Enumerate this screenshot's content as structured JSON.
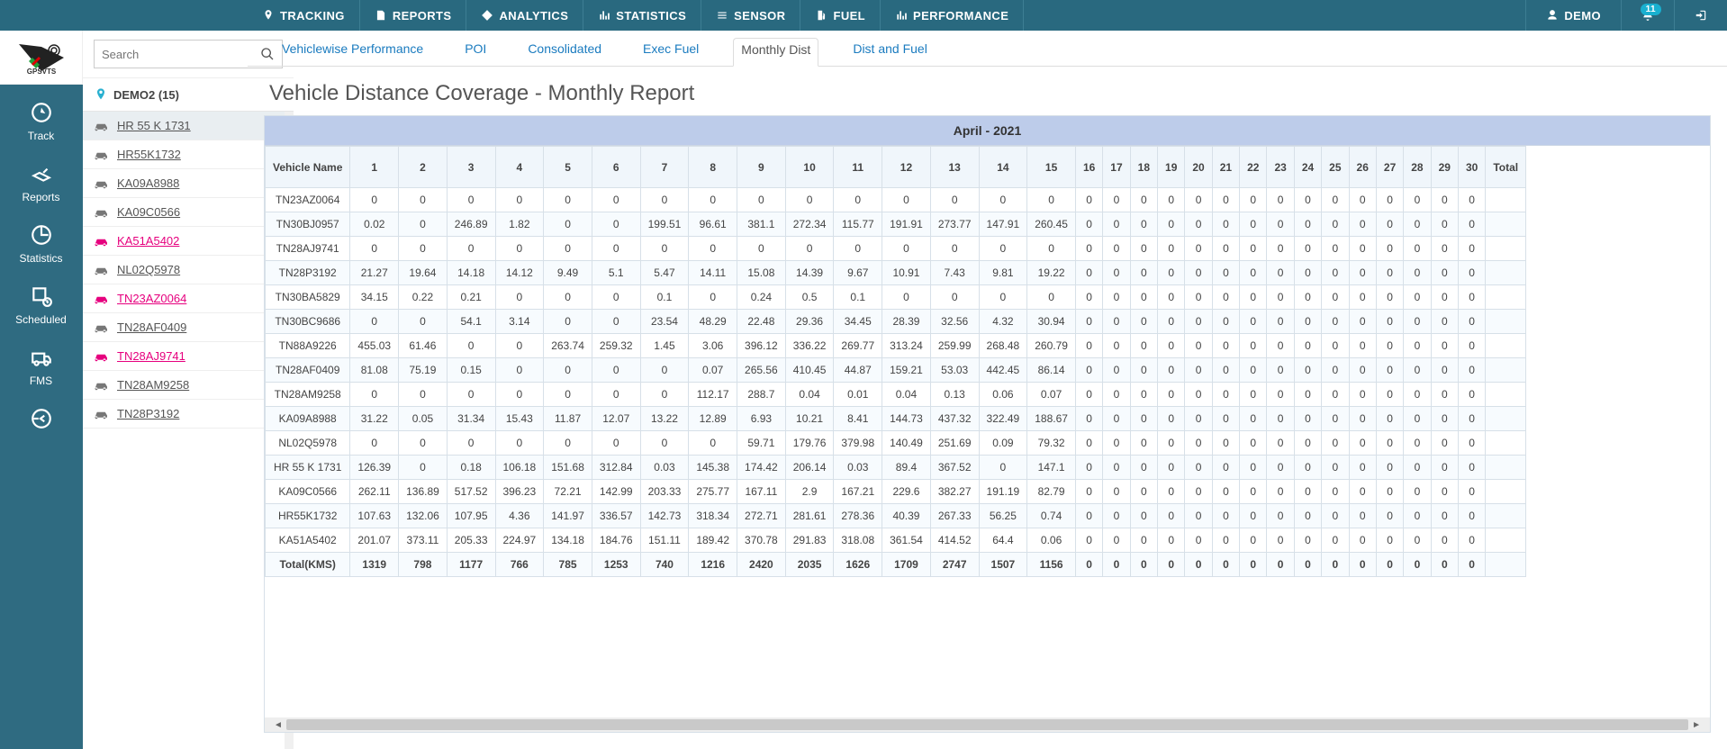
{
  "topnav": {
    "items": [
      {
        "icon": "pin",
        "label": "TRACKING"
      },
      {
        "icon": "doc",
        "label": "REPORTS"
      },
      {
        "icon": "diamond",
        "label": "ANALYTICS"
      },
      {
        "icon": "bars",
        "label": "STATISTICS"
      },
      {
        "icon": "sensor",
        "label": "SENSOR"
      },
      {
        "icon": "fuel",
        "label": "FUEL"
      },
      {
        "icon": "bars",
        "label": "PERFORMANCE"
      }
    ],
    "user_label": "DEMO",
    "notif_count": "11"
  },
  "search_placeholder": "Search",
  "group_label": "DEMO2 (15)",
  "rail": [
    {
      "label": "Track"
    },
    {
      "label": "Reports"
    },
    {
      "label": "Statistics"
    },
    {
      "label": "Scheduled"
    },
    {
      "label": "FMS"
    },
    {
      "label": ""
    }
  ],
  "vehicles": [
    {
      "name": "HR 55 K 1731",
      "pink": false,
      "sel": true
    },
    {
      "name": "HR55K1732",
      "pink": false,
      "sel": false
    },
    {
      "name": "KA09A8988",
      "pink": false,
      "sel": false
    },
    {
      "name": "KA09C0566",
      "pink": false,
      "sel": false
    },
    {
      "name": "KA51A5402",
      "pink": true,
      "sel": false
    },
    {
      "name": "NL02Q5978",
      "pink": false,
      "sel": false
    },
    {
      "name": "TN23AZ0064",
      "pink": true,
      "sel": false
    },
    {
      "name": "TN28AF0409",
      "pink": false,
      "sel": false
    },
    {
      "name": "TN28AJ9741",
      "pink": true,
      "sel": false
    },
    {
      "name": "TN28AM9258",
      "pink": false,
      "sel": false
    },
    {
      "name": "TN28P3192",
      "pink": false,
      "sel": false
    }
  ],
  "subtabs": [
    {
      "label": "Vehiclewise Performance",
      "active": false
    },
    {
      "label": "POI",
      "active": false
    },
    {
      "label": "Consolidated",
      "active": false
    },
    {
      "label": "Exec Fuel",
      "active": false
    },
    {
      "label": "Monthly Dist",
      "active": true
    },
    {
      "label": "Dist and Fuel",
      "active": false
    }
  ],
  "page_title": "Vehicle Distance Coverage - Monthly Report",
  "table": {
    "month_label": "April - 2021",
    "first_col": "Vehicle Name",
    "last_col": "Total",
    "days": [
      "1",
      "2",
      "3",
      "4",
      "5",
      "6",
      "7",
      "8",
      "9",
      "10",
      "11",
      "12",
      "13",
      "14",
      "15",
      "16",
      "17",
      "18",
      "19",
      "20",
      "21",
      "22",
      "23",
      "24",
      "25",
      "26",
      "27",
      "28",
      "29",
      "30"
    ],
    "rows": [
      {
        "name": "TN23AZ0064",
        "v": [
          "0",
          "0",
          "0",
          "0",
          "0",
          "0",
          "0",
          "0",
          "0",
          "0",
          "0",
          "0",
          "0",
          "0",
          "0",
          "0",
          "0",
          "0",
          "0",
          "0",
          "0",
          "0",
          "0",
          "0",
          "0",
          "0",
          "0",
          "0",
          "0",
          "0"
        ]
      },
      {
        "name": "TN30BJ0957",
        "v": [
          "0.02",
          "0",
          "246.89",
          "1.82",
          "0",
          "0",
          "199.51",
          "96.61",
          "381.1",
          "272.34",
          "115.77",
          "191.91",
          "273.77",
          "147.91",
          "260.45",
          "0",
          "0",
          "0",
          "0",
          "0",
          "0",
          "0",
          "0",
          "0",
          "0",
          "0",
          "0",
          "0",
          "0",
          "0"
        ]
      },
      {
        "name": "TN28AJ9741",
        "v": [
          "0",
          "0",
          "0",
          "0",
          "0",
          "0",
          "0",
          "0",
          "0",
          "0",
          "0",
          "0",
          "0",
          "0",
          "0",
          "0",
          "0",
          "0",
          "0",
          "0",
          "0",
          "0",
          "0",
          "0",
          "0",
          "0",
          "0",
          "0",
          "0",
          "0"
        ]
      },
      {
        "name": "TN28P3192",
        "v": [
          "21.27",
          "19.64",
          "14.18",
          "14.12",
          "9.49",
          "5.1",
          "5.47",
          "14.11",
          "15.08",
          "14.39",
          "9.67",
          "10.91",
          "7.43",
          "9.81",
          "19.22",
          "0",
          "0",
          "0",
          "0",
          "0",
          "0",
          "0",
          "0",
          "0",
          "0",
          "0",
          "0",
          "0",
          "0",
          "0"
        ]
      },
      {
        "name": "TN30BA5829",
        "v": [
          "34.15",
          "0.22",
          "0.21",
          "0",
          "0",
          "0",
          "0.1",
          "0",
          "0.24",
          "0.5",
          "0.1",
          "0",
          "0",
          "0",
          "0",
          "0",
          "0",
          "0",
          "0",
          "0",
          "0",
          "0",
          "0",
          "0",
          "0",
          "0",
          "0",
          "0",
          "0",
          "0"
        ]
      },
      {
        "name": "TN30BC9686",
        "v": [
          "0",
          "0",
          "54.1",
          "3.14",
          "0",
          "0",
          "23.54",
          "48.29",
          "22.48",
          "29.36",
          "34.45",
          "28.39",
          "32.56",
          "4.32",
          "30.94",
          "0",
          "0",
          "0",
          "0",
          "0",
          "0",
          "0",
          "0",
          "0",
          "0",
          "0",
          "0",
          "0",
          "0",
          "0"
        ]
      },
      {
        "name": "TN88A9226",
        "v": [
          "455.03",
          "61.46",
          "0",
          "0",
          "263.74",
          "259.32",
          "1.45",
          "3.06",
          "396.12",
          "336.22",
          "269.77",
          "313.24",
          "259.99",
          "268.48",
          "260.79",
          "0",
          "0",
          "0",
          "0",
          "0",
          "0",
          "0",
          "0",
          "0",
          "0",
          "0",
          "0",
          "0",
          "0",
          "0"
        ]
      },
      {
        "name": "TN28AF0409",
        "v": [
          "81.08",
          "75.19",
          "0.15",
          "0",
          "0",
          "0",
          "0",
          "0.07",
          "265.56",
          "410.45",
          "44.87",
          "159.21",
          "53.03",
          "442.45",
          "86.14",
          "0",
          "0",
          "0",
          "0",
          "0",
          "0",
          "0",
          "0",
          "0",
          "0",
          "0",
          "0",
          "0",
          "0",
          "0"
        ]
      },
      {
        "name": "TN28AM9258",
        "v": [
          "0",
          "0",
          "0",
          "0",
          "0",
          "0",
          "0",
          "112.17",
          "288.7",
          "0.04",
          "0.01",
          "0.04",
          "0.13",
          "0.06",
          "0.07",
          "0",
          "0",
          "0",
          "0",
          "0",
          "0",
          "0",
          "0",
          "0",
          "0",
          "0",
          "0",
          "0",
          "0",
          "0"
        ]
      },
      {
        "name": "KA09A8988",
        "v": [
          "31.22",
          "0.05",
          "31.34",
          "15.43",
          "11.87",
          "12.07",
          "13.22",
          "12.89",
          "6.93",
          "10.21",
          "8.41",
          "144.73",
          "437.32",
          "322.49",
          "188.67",
          "0",
          "0",
          "0",
          "0",
          "0",
          "0",
          "0",
          "0",
          "0",
          "0",
          "0",
          "0",
          "0",
          "0",
          "0"
        ]
      },
      {
        "name": "NL02Q5978",
        "v": [
          "0",
          "0",
          "0",
          "0",
          "0",
          "0",
          "0",
          "0",
          "59.71",
          "179.76",
          "379.98",
          "140.49",
          "251.69",
          "0.09",
          "79.32",
          "0",
          "0",
          "0",
          "0",
          "0",
          "0",
          "0",
          "0",
          "0",
          "0",
          "0",
          "0",
          "0",
          "0",
          "0"
        ]
      },
      {
        "name": "HR 55 K 1731",
        "v": [
          "126.39",
          "0",
          "0.18",
          "106.18",
          "151.68",
          "312.84",
          "0.03",
          "145.38",
          "174.42",
          "206.14",
          "0.03",
          "89.4",
          "367.52",
          "0",
          "147.1",
          "0",
          "0",
          "0",
          "0",
          "0",
          "0",
          "0",
          "0",
          "0",
          "0",
          "0",
          "0",
          "0",
          "0",
          "0"
        ]
      },
      {
        "name": "KA09C0566",
        "v": [
          "262.11",
          "136.89",
          "517.52",
          "396.23",
          "72.21",
          "142.99",
          "203.33",
          "275.77",
          "167.11",
          "2.9",
          "167.21",
          "229.6",
          "382.27",
          "191.19",
          "82.79",
          "0",
          "0",
          "0",
          "0",
          "0",
          "0",
          "0",
          "0",
          "0",
          "0",
          "0",
          "0",
          "0",
          "0",
          "0"
        ]
      },
      {
        "name": "HR55K1732",
        "v": [
          "107.63",
          "132.06",
          "107.95",
          "4.36",
          "141.97",
          "336.57",
          "142.73",
          "318.34",
          "272.71",
          "281.61",
          "278.36",
          "40.39",
          "267.33",
          "56.25",
          "0.74",
          "0",
          "0",
          "0",
          "0",
          "0",
          "0",
          "0",
          "0",
          "0",
          "0",
          "0",
          "0",
          "0",
          "0",
          "0"
        ]
      },
      {
        "name": "KA51A5402",
        "v": [
          "201.07",
          "373.11",
          "205.33",
          "224.97",
          "134.18",
          "184.76",
          "151.11",
          "189.42",
          "370.78",
          "291.83",
          "318.08",
          "361.54",
          "414.52",
          "64.4",
          "0.06",
          "0",
          "0",
          "0",
          "0",
          "0",
          "0",
          "0",
          "0",
          "0",
          "0",
          "0",
          "0",
          "0",
          "0",
          "0"
        ]
      }
    ],
    "total_row": {
      "name": "Total(KMS)",
      "v": [
        "1319",
        "798",
        "1177",
        "766",
        "785",
        "1253",
        "740",
        "1216",
        "2420",
        "2035",
        "1626",
        "1709",
        "2747",
        "1507",
        "1156",
        "0",
        "0",
        "0",
        "0",
        "0",
        "0",
        "0",
        "0",
        "0",
        "0",
        "0",
        "0",
        "0",
        "0",
        "0"
      ]
    }
  }
}
